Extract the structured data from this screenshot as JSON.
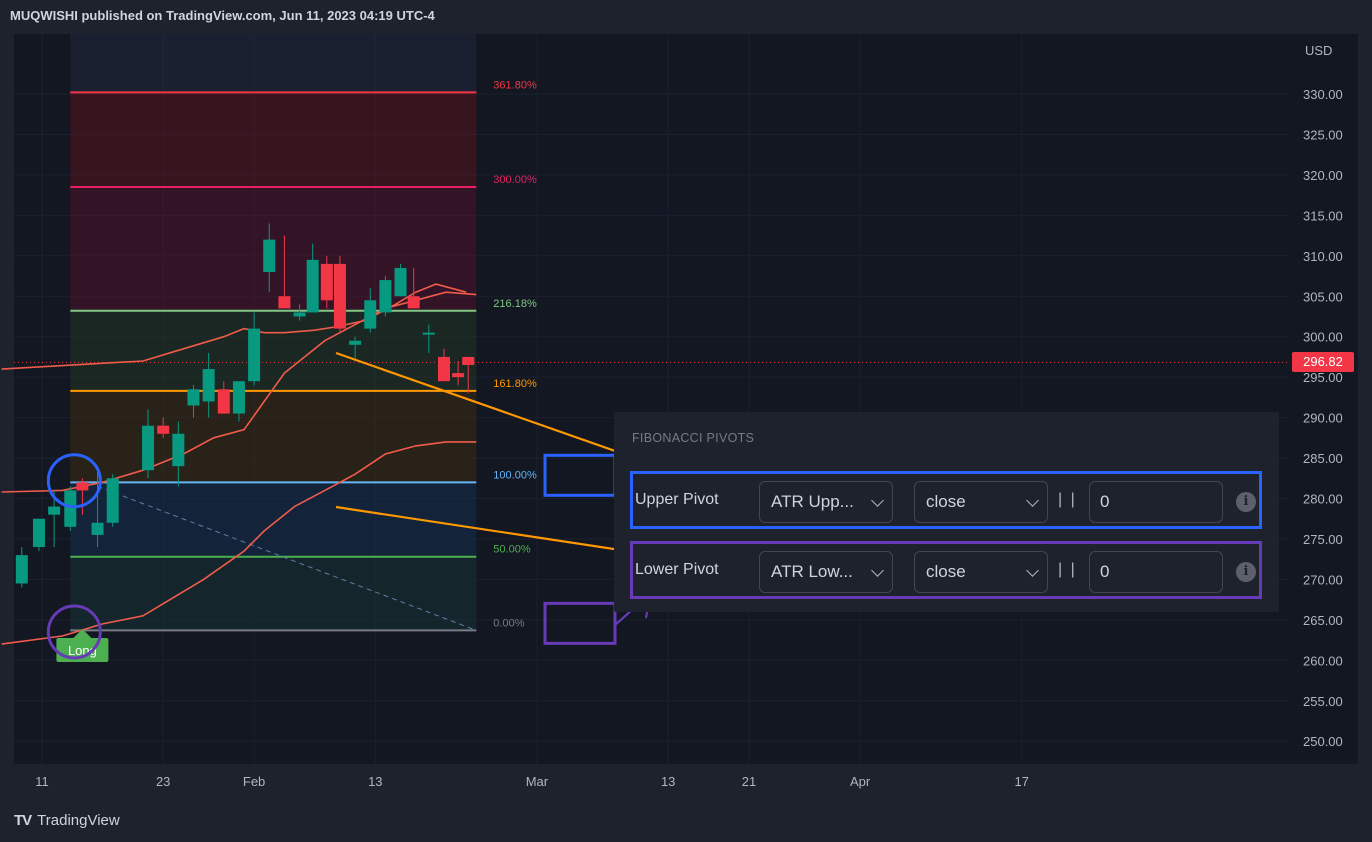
{
  "header": {
    "title": "MUQWISHI published on TradingView.com, Jun 11, 2023 04:19 UTC-4"
  },
  "footer": {
    "brand": "TradingView",
    "logo_icon": "tradingview-logo-icon"
  },
  "colors": {
    "bg": "#131722",
    "up": "#089981",
    "down": "#f23645",
    "atr_line": "#f15b4b",
    "upper_box": "#2962ff",
    "lower_box": "#673ab7",
    "arrow": "#ff9800"
  },
  "chart_data": {
    "type": "candlestick",
    "currency": "USD",
    "y_ticks": [
      330,
      325,
      320,
      315,
      310,
      305,
      300,
      295,
      290,
      285,
      280,
      275,
      270,
      265,
      260,
      255,
      250
    ],
    "y_tick_labels": [
      "330.00",
      "325.00",
      "320.00",
      "315.00",
      "310.00",
      "305.00",
      "300.00",
      "295.00",
      "290.00",
      "285.00",
      "280.00",
      "275.00",
      "270.00",
      "265.00",
      "260.00",
      "255.00",
      "250.00"
    ],
    "ylim": [
      246.5,
      335
    ],
    "x_ticks": [
      {
        "day": 0,
        "label": "11"
      },
      {
        "day": 12,
        "label": "23"
      },
      {
        "day": 21,
        "label": "Feb"
      },
      {
        "day": 33,
        "label": "13"
      },
      {
        "day": 49,
        "label": "Mar"
      },
      {
        "day": 62,
        "label": "13"
      },
      {
        "day": 70,
        "label": "21"
      },
      {
        "day": 81,
        "label": "Apr"
      },
      {
        "day": 97,
        "label": "17"
      }
    ],
    "current_price": 296.82,
    "current_price_label": "296.82",
    "candles": [
      {
        "d": -2,
        "o": 269.5,
        "h": 274,
        "l": 269,
        "c": 273
      },
      {
        "d": -0.3,
        "o": 274,
        "h": 277,
        "l": 273.5,
        "c": 277.5
      },
      {
        "d": 1.2,
        "o": 278,
        "h": 281,
        "l": 274,
        "c": 279
      },
      {
        "d": 2.8,
        "o": 276.5,
        "h": 281.5,
        "l": 276,
        "c": 281
      },
      {
        "d": 4.0,
        "o": 282,
        "h": 282.5,
        "l": 278,
        "c": 281
      },
      {
        "d": 5.5,
        "o": 275.5,
        "h": 284,
        "l": 274,
        "c": 277
      },
      {
        "d": 7.0,
        "o": 277,
        "h": 283,
        "l": 276.5,
        "c": 282.5
      },
      {
        "d": 10.5,
        "o": 283.5,
        "h": 291,
        "l": 282.5,
        "c": 289
      },
      {
        "d": 12.0,
        "o": 289,
        "h": 290,
        "l": 287.5,
        "c": 288
      },
      {
        "d": 13.5,
        "o": 284,
        "h": 289.5,
        "l": 281.5,
        "c": 288
      },
      {
        "d": 15.0,
        "o": 291.5,
        "h": 294,
        "l": 290,
        "c": 293.5
      },
      {
        "d": 16.5,
        "o": 292,
        "h": 298,
        "l": 290,
        "c": 296
      },
      {
        "d": 18.0,
        "o": 293.5,
        "h": 294.5,
        "l": 291,
        "c": 290.5
      },
      {
        "d": 19.5,
        "o": 290.5,
        "h": 294.5,
        "l": 289.5,
        "c": 294.5
      },
      {
        "d": 21.0,
        "o": 294.5,
        "h": 303,
        "l": 294,
        "c": 301
      },
      {
        "d": 22.5,
        "o": 308,
        "h": 314,
        "l": 305.5,
        "c": 312
      },
      {
        "d": 24.0,
        "o": 305,
        "h": 312.5,
        "l": 303.5,
        "c": 303.5
      },
      {
        "d": 25.5,
        "o": 302.5,
        "h": 304,
        "l": 302,
        "c": 303
      },
      {
        "d": 26.8,
        "o": 303,
        "h": 311.5,
        "l": 303,
        "c": 309.5
      },
      {
        "d": 28.2,
        "o": 309,
        "h": 310,
        "l": 303.5,
        "c": 304.5
      },
      {
        "d": 29.5,
        "o": 309,
        "h": 310,
        "l": 300.5,
        "c": 301
      },
      {
        "d": 31.0,
        "o": 299,
        "h": 300,
        "l": 297,
        "c": 299.5
      },
      {
        "d": 32.5,
        "o": 301,
        "h": 306,
        "l": 300.5,
        "c": 304.5
      },
      {
        "d": 34.0,
        "o": 303,
        "h": 307.5,
        "l": 302.5,
        "c": 307
      },
      {
        "d": 35.5,
        "o": 305,
        "h": 309,
        "l": 305,
        "c": 308.5
      },
      {
        "d": 36.8,
        "o": 305,
        "h": 308.5,
        "l": 303.5,
        "c": 303.5
      },
      {
        "d": 38.3,
        "o": 300.5,
        "h": 301.5,
        "l": 298,
        "c": 300.5
      },
      {
        "d": 39.8,
        "o": 297.5,
        "h": 298.5,
        "l": 294.5,
        "c": 294.5
      },
      {
        "d": 41.2,
        "o": 295.5,
        "h": 297,
        "l": 294,
        "c": 295
      },
      {
        "d": 42.2,
        "o": 297.5,
        "h": 297.5,
        "l": 293,
        "c": 296.5
      }
    ],
    "atr_upper": [
      {
        "d": -4,
        "v": 296
      },
      {
        "d": 10,
        "v": 297
      },
      {
        "d": 14,
        "v": 298.5
      },
      {
        "d": 18,
        "v": 300
      },
      {
        "d": 20,
        "v": 301
      },
      {
        "d": 22,
        "v": 300.5
      },
      {
        "d": 24,
        "v": 300.5
      },
      {
        "d": 27,
        "v": 300.8
      },
      {
        "d": 29,
        "v": 301.2
      },
      {
        "d": 32,
        "v": 302
      },
      {
        "d": 35,
        "v": 304
      },
      {
        "d": 37,
        "v": 305.5
      },
      {
        "d": 39,
        "v": 306.5
      },
      {
        "d": 42,
        "v": 305.5
      }
    ],
    "atr_mid": [
      {
        "d": -4,
        "v": 280.8
      },
      {
        "d": 2,
        "v": 281
      },
      {
        "d": 6,
        "v": 282
      },
      {
        "d": 10,
        "v": 283.5
      },
      {
        "d": 14,
        "v": 285.5
      },
      {
        "d": 17,
        "v": 287.5
      },
      {
        "d": 20,
        "v": 288.5
      },
      {
        "d": 22,
        "v": 292
      },
      {
        "d": 24,
        "v": 295.5
      },
      {
        "d": 26,
        "v": 297.5
      },
      {
        "d": 28,
        "v": 299.5
      },
      {
        "d": 31,
        "v": 301.5
      },
      {
        "d": 34,
        "v": 303.5
      },
      {
        "d": 37,
        "v": 304.5
      },
      {
        "d": 40,
        "v": 305.5
      },
      {
        "d": 43,
        "v": 305.2
      }
    ],
    "atr_lower": [
      {
        "d": -4,
        "v": 262
      },
      {
        "d": 2,
        "v": 263
      },
      {
        "d": 6,
        "v": 264.5
      },
      {
        "d": 10,
        "v": 265.5
      },
      {
        "d": 12,
        "v": 267
      },
      {
        "d": 16,
        "v": 270
      },
      {
        "d": 20,
        "v": 273.5
      },
      {
        "d": 22,
        "v": 276
      },
      {
        "d": 25,
        "v": 279
      },
      {
        "d": 28,
        "v": 281
      },
      {
        "d": 31,
        "v": 283
      },
      {
        "d": 34,
        "v": 285.5
      },
      {
        "d": 37,
        "v": 286.5
      },
      {
        "d": 40,
        "v": 287
      },
      {
        "d": 43,
        "v": 287
      }
    ],
    "fib_box": {
      "d_start": 2.8,
      "d_end": 43
    },
    "fib_levels": [
      {
        "label": "361.80%",
        "v": 330.2,
        "color": "#f23645",
        "fill": "rgba(120,18,26,0.35)"
      },
      {
        "label": "300.00%",
        "v": 318.5,
        "color": "#e91e63",
        "fill": "rgba(110,14,45,0.35)"
      },
      {
        "label": "216.18%",
        "v": 303.2,
        "color": "#81c784",
        "fill": "rgba(40,70,35,0.35)"
      },
      {
        "label": "161.80%",
        "v": 293.3,
        "color": "#ff9800",
        "fill": "rgba(80,55,10,0.35)"
      },
      {
        "label": "100.00%",
        "v": 282,
        "color": "#64b5f6",
        "fill": "rgba(20,45,75,0.4)"
      },
      {
        "label": "50.00%",
        "v": 272.8,
        "color": "#4caf50",
        "fill": "rgba(25,55,25,0.35)"
      },
      {
        "label": "0.00%",
        "v": 263.7,
        "color": "#787b86",
        "fill": "rgba(0,0,0,0)"
      }
    ],
    "signal": {
      "label": "Long",
      "d": 4.0,
      "v": 263.5
    }
  },
  "panel": {
    "title": "FIBONACCI PIVOTS",
    "rows": [
      {
        "label": "Upper Pivot",
        "source": "ATR Upp...",
        "mode": "close",
        "separator": "| |",
        "value": "0",
        "info_icon": "info-icon"
      },
      {
        "label": "Lower Pivot",
        "source": "ATR Low...",
        "mode": "close",
        "separator": "| |",
        "value": "0",
        "info_icon": "info-icon"
      }
    ]
  }
}
